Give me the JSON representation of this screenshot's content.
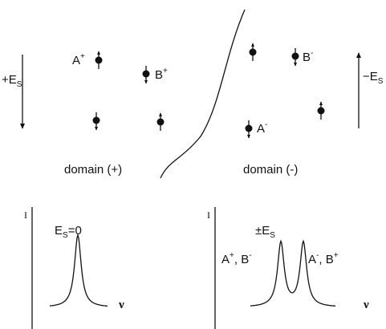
{
  "top": {
    "left_field": {
      "base": "+E",
      "sub": "S"
    },
    "right_field": {
      "base": "−E",
      "sub": "S"
    },
    "a_plus": {
      "base": "A",
      "sup": "+"
    },
    "b_plus": {
      "base": "B",
      "sup": "+"
    },
    "b_minus": {
      "base": "B",
      "sup": "-"
    },
    "a_minus": {
      "base": "A",
      "sup": "-"
    },
    "domain_plus": "domain (+)",
    "domain_minus": "domain (-)"
  },
  "bottom": {
    "left": {
      "axis": "I",
      "title": {
        "base": "E",
        "sub": "S",
        "rest": "=0"
      },
      "x_axis": "ν"
    },
    "right": {
      "axis": "I",
      "title": {
        "pre": "±E",
        "sub": "S"
      },
      "peak1": {
        "a": "A",
        "a_sup": "+",
        "b": ", B",
        "b_sup": "-"
      },
      "peak2": {
        "a": "A",
        "a_sup": "-",
        "b": ", B",
        "b_sup": "+"
      },
      "x_axis": "ν"
    }
  }
}
